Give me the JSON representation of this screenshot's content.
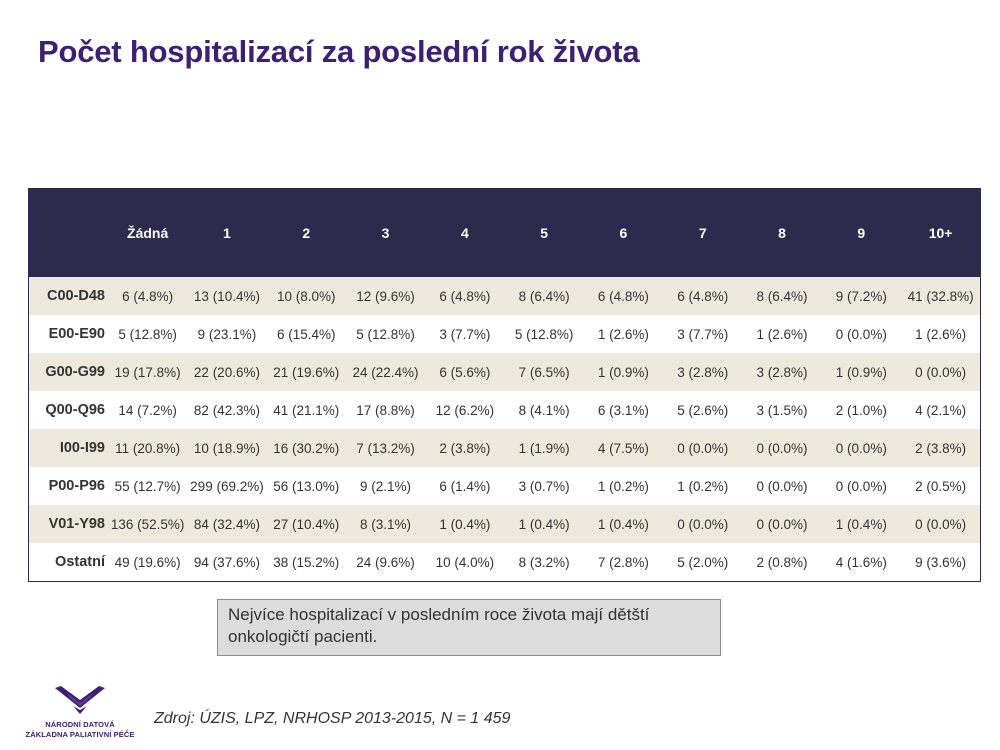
{
  "title": "Počet hospitalizací za poslední rok života",
  "table": {
    "columns": [
      "Žádná",
      "1",
      "2",
      "3",
      "4",
      "5",
      "6",
      "7",
      "8",
      "9",
      "10+"
    ],
    "rows": [
      {
        "label": "C00-D48",
        "cells": [
          "6 (4.8%)",
          "13 (10.4%)",
          "10 (8.0%)",
          "12 (9.6%)",
          "6 (4.8%)",
          "8 (6.4%)",
          "6 (4.8%)",
          "6 (4.8%)",
          "8 (6.4%)",
          "9 (7.2%)",
          "41 (32.8%)"
        ]
      },
      {
        "label": "E00-E90",
        "cells": [
          "5 (12.8%)",
          "9 (23.1%)",
          "6 (15.4%)",
          "5 (12.8%)",
          "3 (7.7%)",
          "5 (12.8%)",
          "1 (2.6%)",
          "3 (7.7%)",
          "1 (2.6%)",
          "0 (0.0%)",
          "1 (2.6%)"
        ]
      },
      {
        "label": "G00-G99",
        "cells": [
          "19 (17.8%)",
          "22 (20.6%)",
          "21 (19.6%)",
          "24 (22.4%)",
          "6 (5.6%)",
          "7 (6.5%)",
          "1 (0.9%)",
          "3 (2.8%)",
          "3 (2.8%)",
          "1 (0.9%)",
          "0 (0.0%)"
        ]
      },
      {
        "label": "Q00-Q96",
        "cells": [
          "14 (7.2%)",
          "82 (42.3%)",
          "41 (21.1%)",
          "17 (8.8%)",
          "12 (6.2%)",
          "8 (4.1%)",
          "6 (3.1%)",
          "5 (2.6%)",
          "3 (1.5%)",
          "2 (1.0%)",
          "4 (2.1%)"
        ]
      },
      {
        "label": "I00-I99",
        "cells": [
          "11 (20.8%)",
          "10 (18.9%)",
          "16 (30.2%)",
          "7 (13.2%)",
          "2 (3.8%)",
          "1 (1.9%)",
          "4 (7.5%)",
          "0 (0.0%)",
          "0 (0.0%)",
          "0 (0.0%)",
          "2 (3.8%)"
        ]
      },
      {
        "label": "P00-P96",
        "cells": [
          "55 (12.7%)",
          "299 (69.2%)",
          "56 (13.0%)",
          "9 (2.1%)",
          "6 (1.4%)",
          "3 (0.7%)",
          "1 (0.2%)",
          "1 (0.2%)",
          "0 (0.0%)",
          "0 (0.0%)",
          "2 (0.5%)"
        ]
      },
      {
        "label": "V01-Y98",
        "cells": [
          "136 (52.5%)",
          "84 (32.4%)",
          "27 (10.4%)",
          "8 (3.1%)",
          "1 (0.4%)",
          "1 (0.4%)",
          "1 (0.4%)",
          "0 (0.0%)",
          "0 (0.0%)",
          "1 (0.4%)",
          "0 (0.0%)"
        ]
      },
      {
        "label": "Ostatní",
        "cells": [
          "49 (19.6%)",
          "94 (37.6%)",
          "38 (15.2%)",
          "24 (9.6%)",
          "10 (4.0%)",
          "8 (3.2%)",
          "7 (2.8%)",
          "5 (2.0%)",
          "2 (0.8%)",
          "4 (1.6%)",
          "9 (3.6%)"
        ]
      }
    ]
  },
  "callout": {
    "text": "Nejvíce hospitalizací v posledním roce života mají dětští onkologičtí pacienti."
  },
  "logo": {
    "line1": "NÁRODNÍ DATOVÁ",
    "line2": "ZÁKLADNA PALIATIVNÍ PÉČE",
    "icon": "winged-chevron-logo-icon"
  },
  "source": "Zdroj: ÚZIS, LPZ, NRHOSP 2013-2015, N = 1 459",
  "colors": {
    "title": "#3d2070",
    "header_bg": "#2e2a4e",
    "row_shade": "#ede9dc",
    "callout_bg": "#dcdcdc"
  }
}
